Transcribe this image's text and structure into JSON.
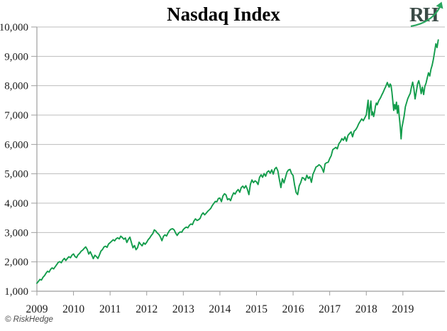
{
  "page": {
    "title": "Nasdaq Index",
    "footer": "© RiskHedge",
    "logo_text": "RH"
  },
  "colors": {
    "line_green": "#129C4B",
    "logo_arrow_green": "#2aa55f",
    "logo_letters": "#3a4a46",
    "grid_gray": "#bdbdbd",
    "axis_gray": "#9e9e9e",
    "label_black": "#1a1a1a"
  },
  "chart_data": {
    "type": "line",
    "title": "Nasdaq Index",
    "xlabel": "",
    "ylabel": "",
    "grid": true,
    "legend": false,
    "x_range": [
      2009,
      2020.05
    ],
    "y_range": [
      1000,
      10000
    ],
    "y_step": 1000,
    "x_tick_labels": [
      "2009",
      "2010",
      "2011",
      "2012",
      "2013",
      "2014",
      "2015",
      "2016",
      "2017",
      "2018",
      "2019"
    ],
    "y_tick_values": [
      1000,
      2000,
      3000,
      4000,
      5000,
      6000,
      7000,
      8000,
      9000,
      10000
    ],
    "y_tick_labels": [
      "1,000",
      "2,000",
      "3,000",
      "4,000",
      "5,000",
      "6,000",
      "7,000",
      "8,000",
      "9,000",
      "10,000"
    ],
    "series": [
      {
        "name": "Nasdaq Index",
        "color": "#129C4B",
        "points_by_year": {
          "2009": [
            1270,
            1335,
            1405,
            1380,
            1475,
            1530,
            1615,
            1680,
            1650,
            1745,
            1795,
            1760,
            1835,
            1905,
            1985,
            2010,
            1970,
            2060,
            2120,
            2045,
            2120,
            2175,
            2140,
            2230
          ],
          "2010": [
            2270,
            2180,
            2145,
            2240,
            2290,
            2360,
            2400,
            2460,
            2510,
            2425,
            2265,
            2345,
            2230,
            2110,
            2225,
            2180,
            2115,
            2235,
            2370,
            2420,
            2510,
            2535,
            2495,
            2610
          ],
          "2011": [
            2655,
            2700,
            2755,
            2715,
            2790,
            2820,
            2780,
            2875,
            2830,
            2770,
            2815,
            2660,
            2770,
            2840,
            2650,
            2480,
            2555,
            2415,
            2480,
            2670,
            2600,
            2545,
            2650,
            2600
          ],
          "2012": [
            2670,
            2760,
            2815,
            2900,
            2960,
            3090,
            3050,
            2980,
            2935,
            2845,
            2720,
            2870,
            2920,
            2880,
            2985,
            3070,
            3115,
            3130,
            3090,
            2980,
            2900,
            2985,
            3020,
            3010
          ],
          "2013": [
            3100,
            3150,
            3185,
            3160,
            3245,
            3290,
            3270,
            3395,
            3465,
            3410,
            3435,
            3480,
            3605,
            3670,
            3600,
            3660,
            3720,
            3770,
            3820,
            3920,
            3990,
            4060,
            4045,
            4160
          ],
          "2014": [
            4175,
            4050,
            4245,
            4320,
            4280,
            4115,
            4155,
            4085,
            4240,
            4350,
            4310,
            4410,
            4465,
            4370,
            4530,
            4580,
            4510,
            4595,
            4475,
            4290,
            4640,
            4790,
            4700,
            4760
          ],
          "2015": [
            4725,
            4635,
            4880,
            4965,
            4880,
            5010,
            4920,
            5060,
            5100,
            5020,
            5135,
            4990,
            5165,
            5220,
            5100,
            4810,
            4530,
            4830,
            4690,
            4870,
            5060,
            5130,
            5150,
            5010
          ],
          "2016": [
            4940,
            4615,
            4360,
            4290,
            4590,
            4700,
            4870,
            4850,
            4780,
            4950,
            4840,
            4900,
            4710,
            4980,
            5100,
            5230,
            5260,
            5310,
            5270,
            5190,
            5050,
            5340,
            5380,
            5390
          ],
          "2017": [
            5520,
            5615,
            5825,
            5860,
            5900,
            5850,
            6025,
            6090,
            6200,
            6140,
            6260,
            6110,
            6310,
            6370,
            6430,
            6260,
            6450,
            6495,
            6585,
            6700,
            6790,
            6870,
            6810,
            6905
          ],
          "2018": [
            7010,
            7260,
            7505,
            6870,
            7240,
            7480,
            7000,
            7110,
            6950,
            7090,
            7300,
            7410,
            7350,
            7440,
            7510,
            7560,
            7620,
            7690,
            7750,
            7820,
            7890,
            7950,
            8030,
            8110,
            8020,
            7950,
            8060,
            8010,
            7780,
            7460,
            7160,
            7360,
            7200,
            7440,
            7060,
            7330,
            6950,
            6635,
            6190,
            6580
          ],
          "2019": [
            6740,
            6970,
            7280,
            7420,
            7560,
            7650,
            7740,
            7950,
            8120,
            7910,
            7550,
            7800,
            8060,
            8170,
            8000,
            7730,
            7950,
            7700,
            7980,
            8090,
            8270,
            8440,
            8330,
            8560,
            8700,
            8900,
            9150,
            9430,
            9300,
            9560
          ]
        }
      }
    ]
  }
}
